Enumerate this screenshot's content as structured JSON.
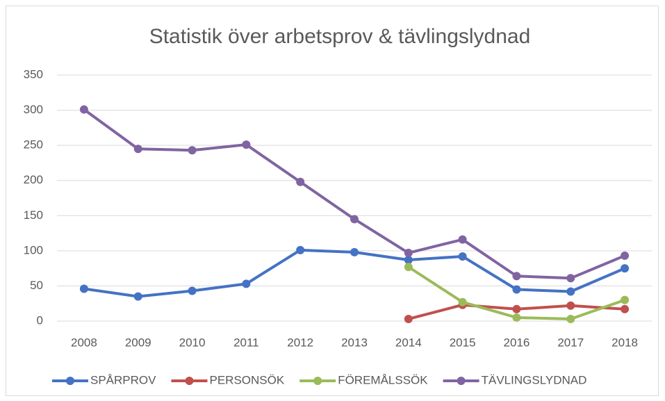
{
  "chart_data": {
    "type": "line",
    "title": "Statistik över arbetsprov & tävlingslydnad",
    "categories": [
      "2008",
      "2009",
      "2010",
      "2011",
      "2012",
      "2013",
      "2014",
      "2015",
      "2016",
      "2017",
      "2018"
    ],
    "series": [
      {
        "name": "SPÅRPROV",
        "color": "#4472c4",
        "values": [
          46,
          35,
          43,
          53,
          101,
          98,
          87,
          92,
          45,
          42,
          75
        ]
      },
      {
        "name": "PERSONSÖK",
        "color": "#c0504d",
        "values": [
          null,
          null,
          null,
          null,
          null,
          null,
          3,
          23,
          17,
          22,
          17
        ]
      },
      {
        "name": "FÖREMÅLSSÖK",
        "color": "#9bbb59",
        "values": [
          null,
          null,
          null,
          null,
          null,
          null,
          77,
          27,
          5,
          3,
          30
        ]
      },
      {
        "name": "TÄVLINGSLYDNAD",
        "color": "#8064a2",
        "values": [
          301,
          245,
          243,
          251,
          198,
          145,
          97,
          116,
          64,
          61,
          93
        ]
      }
    ],
    "ylim": [
      0,
      350
    ],
    "yticks": [
      0,
      50,
      100,
      150,
      200,
      250,
      300,
      350
    ],
    "grid": true,
    "legend": "bottom"
  }
}
